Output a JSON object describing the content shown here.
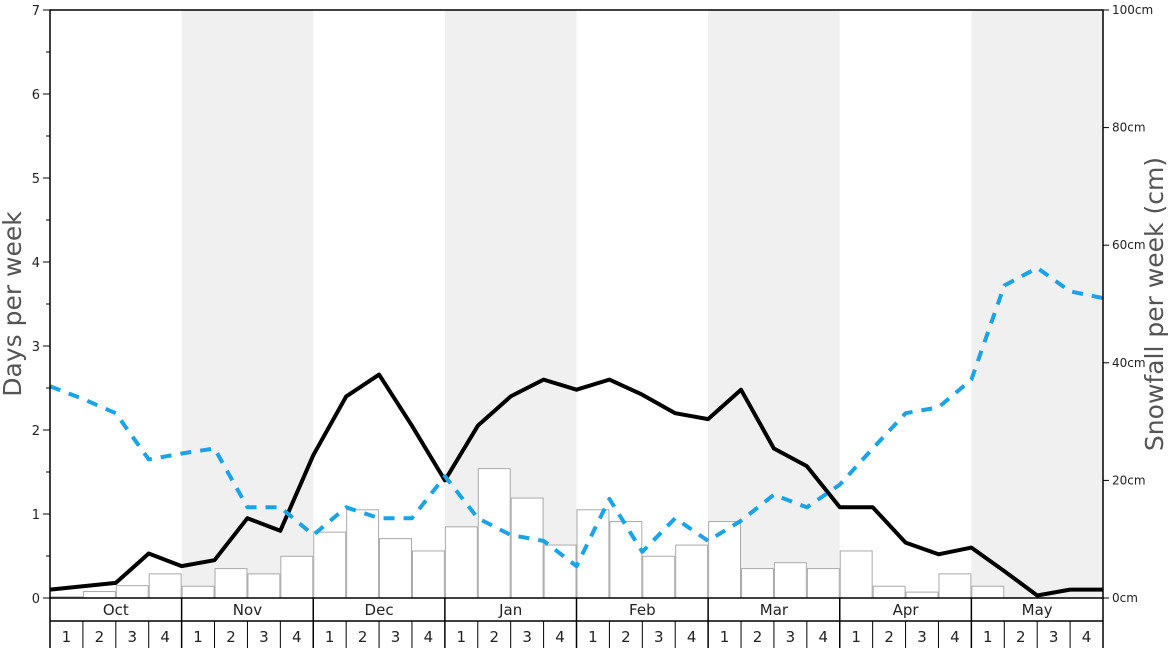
{
  "chart_data": {
    "type": "bar+line",
    "ylabel_left": "Days per week",
    "ylabel_right": "Snowfall per week (cm)",
    "ylim_left": [
      0,
      7
    ],
    "ylim_right": [
      0,
      100
    ],
    "left_ticks": [
      "0",
      "1",
      "2",
      "3",
      "4",
      "5",
      "6",
      "7"
    ],
    "right_ticks": [
      "0cm",
      "20cm",
      "40cm",
      "60cm",
      "80cm",
      "100cm"
    ],
    "months": [
      "Oct",
      "Nov",
      "Dec",
      "Jan",
      "Feb",
      "Mar",
      "Apr",
      "May"
    ],
    "weeks": [
      "1",
      "2",
      "3",
      "4"
    ],
    "shaded_months": [
      "Nov",
      "Jan",
      "Mar",
      "May"
    ],
    "colors": {
      "shade": "#f0f0f0",
      "bar_fill": "#ffffff",
      "bar_stroke": "#aaaaaa",
      "solid_line": "#000000",
      "dashed_line": "#1aa3e8"
    },
    "series": [
      {
        "kind": "bar",
        "axis": "right",
        "values": [
          0.2,
          1.1,
          2.1,
          4.1,
          2.0,
          5.0,
          4.1,
          7.1,
          11.2,
          15.0,
          10.1,
          8.0,
          12.1,
          22.0,
          17.0,
          9.0,
          15.0,
          13.0,
          7.1,
          9.0,
          13.0,
          5.0,
          6.0,
          5.0,
          8.0,
          2.0,
          1.0,
          4.1,
          2.0,
          0.0,
          0.0,
          0.0
        ]
      },
      {
        "kind": "line",
        "style": "solid",
        "axis": "left",
        "values": [
          0.1,
          0.14,
          0.18,
          0.53,
          0.38,
          0.45,
          0.95,
          0.8,
          1.7,
          2.4,
          2.66,
          2.05,
          1.4,
          2.05,
          2.4,
          2.6,
          2.48,
          2.6,
          2.42,
          2.2,
          2.13,
          2.48,
          1.78,
          1.57,
          1.08,
          1.08,
          0.66,
          0.52,
          0.6,
          0.32,
          0.03,
          0.1,
          0.1
        ]
      },
      {
        "kind": "line",
        "style": "dashed",
        "axis": "left",
        "values": [
          2.52,
          2.37,
          2.2,
          1.65,
          1.72,
          1.78,
          1.08,
          1.08,
          0.75,
          1.08,
          0.95,
          0.95,
          1.45,
          0.95,
          0.75,
          0.68,
          0.38,
          1.18,
          0.55,
          0.95,
          0.68,
          0.92,
          1.23,
          1.08,
          1.35,
          1.78,
          2.2,
          2.27,
          2.6,
          3.72,
          3.93,
          3.65,
          3.57
        ]
      }
    ]
  }
}
